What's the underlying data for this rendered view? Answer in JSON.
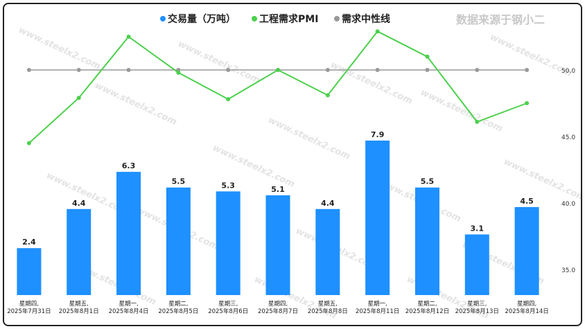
{
  "source_note": "数据来源于钢小二",
  "watermark": "www.steelx2.com",
  "colors": {
    "bar": "#1e90ff",
    "pmi": "#4cd04c",
    "neutral": "#999999"
  },
  "chart_data": {
    "type": "bar+line",
    "categories": [
      [
        "星期四,",
        "2025年7月31日"
      ],
      [
        "星期五,",
        "2025年8月1日"
      ],
      [
        "星期一,",
        "2025年8月4日"
      ],
      [
        "星期二,",
        "2025年8月5日"
      ],
      [
        "星期三,",
        "2025年8月6日"
      ],
      [
        "星期四,",
        "2025年8月7日"
      ],
      [
        "星期五,",
        "2025年8月8日"
      ],
      [
        "星期一,",
        "2025年8月11日"
      ],
      [
        "星期二,",
        "2025年8月12日"
      ],
      [
        "星期三,",
        "2025年8月13日"
      ],
      [
        "星期四,",
        "2025年8月14日"
      ]
    ],
    "series": [
      {
        "name": "交易量（万吨）",
        "type": "bar",
        "values": [
          2.4,
          4.4,
          6.3,
          5.5,
          5.3,
          5.1,
          4.4,
          7.9,
          5.5,
          3.1,
          4.5
        ],
        "labels": [
          "2.4",
          "4.4",
          "6.3",
          "5.5",
          "5.3",
          "5.1",
          "4.4",
          "7.9",
          "5.5",
          "3.1",
          "4.5"
        ]
      },
      {
        "name": "工程需求PMI",
        "type": "line",
        "values": [
          44.5,
          47.9,
          52.5,
          49.8,
          47.8,
          50.0,
          48.1,
          52.9,
          51.0,
          46.1,
          47.5
        ]
      },
      {
        "name": "需求中性线",
        "type": "line",
        "values": [
          50,
          50,
          50,
          50,
          50,
          50,
          50,
          50,
          50,
          50,
          50
        ]
      }
    ],
    "y_right": {
      "ticks": [
        "50.0",
        "45.0",
        "40.0",
        "35.0"
      ],
      "tick_values": [
        50,
        45,
        40,
        35
      ]
    },
    "legend": "top-center"
  }
}
